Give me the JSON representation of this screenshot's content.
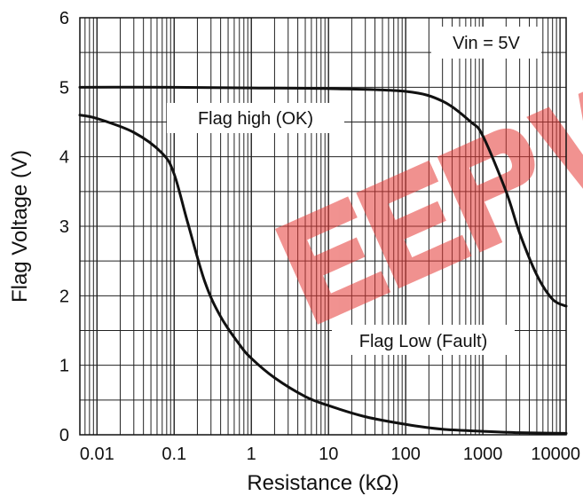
{
  "chart_data": {
    "type": "line",
    "title": "",
    "xlabel": "Resistance (kΩ)",
    "ylabel": "Flag Voltage (V)",
    "x_scale": "log",
    "xlim": [
      0.006,
      12000
    ],
    "ylim": [
      0,
      6
    ],
    "grid": true,
    "x_ticks": [
      0.01,
      0.1,
      1,
      10,
      100,
      1000,
      10000
    ],
    "x_tick_labels": [
      "0.01",
      "0.1",
      "1",
      "10",
      "100",
      "1000",
      "10000"
    ],
    "y_ticks": [
      0,
      1,
      2,
      3,
      4,
      5,
      6
    ],
    "y_tick_labels": [
      "0",
      "1",
      "2",
      "3",
      "4",
      "5",
      "6"
    ],
    "series": [
      {
        "values": [
          [
            0.006,
            5.0
          ],
          [
            0.1,
            5.0
          ],
          [
            1,
            4.99
          ],
          [
            10,
            4.98
          ],
          [
            100,
            4.94
          ],
          [
            300,
            4.8
          ],
          [
            700,
            4.5
          ],
          [
            1000,
            4.3
          ],
          [
            2000,
            3.5
          ],
          [
            3000,
            2.9
          ],
          [
            5000,
            2.3
          ],
          [
            8000,
            1.95
          ],
          [
            12000,
            1.85
          ]
        ]
      },
      {
        "values": [
          [
            0.006,
            4.6
          ],
          [
            0.01,
            4.55
          ],
          [
            0.03,
            4.35
          ],
          [
            0.07,
            4.05
          ],
          [
            0.1,
            3.75
          ],
          [
            0.15,
            3.05
          ],
          [
            0.25,
            2.2
          ],
          [
            0.4,
            1.7
          ],
          [
            0.7,
            1.3
          ],
          [
            1,
            1.1
          ],
          [
            2,
            0.82
          ],
          [
            5,
            0.55
          ],
          [
            10,
            0.42
          ],
          [
            30,
            0.26
          ],
          [
            100,
            0.15
          ],
          [
            300,
            0.08
          ],
          [
            1000,
            0.05
          ],
          [
            3000,
            0.03
          ],
          [
            12000,
            0.02
          ]
        ]
      }
    ],
    "annotations": [
      {
        "text": "Vin = 5V"
      },
      {
        "text": "Flag high (OK)"
      },
      {
        "text": "Flag Low (Fault)"
      }
    ]
  },
  "watermark": {
    "text": "EEPW",
    "color": "#e03030"
  }
}
